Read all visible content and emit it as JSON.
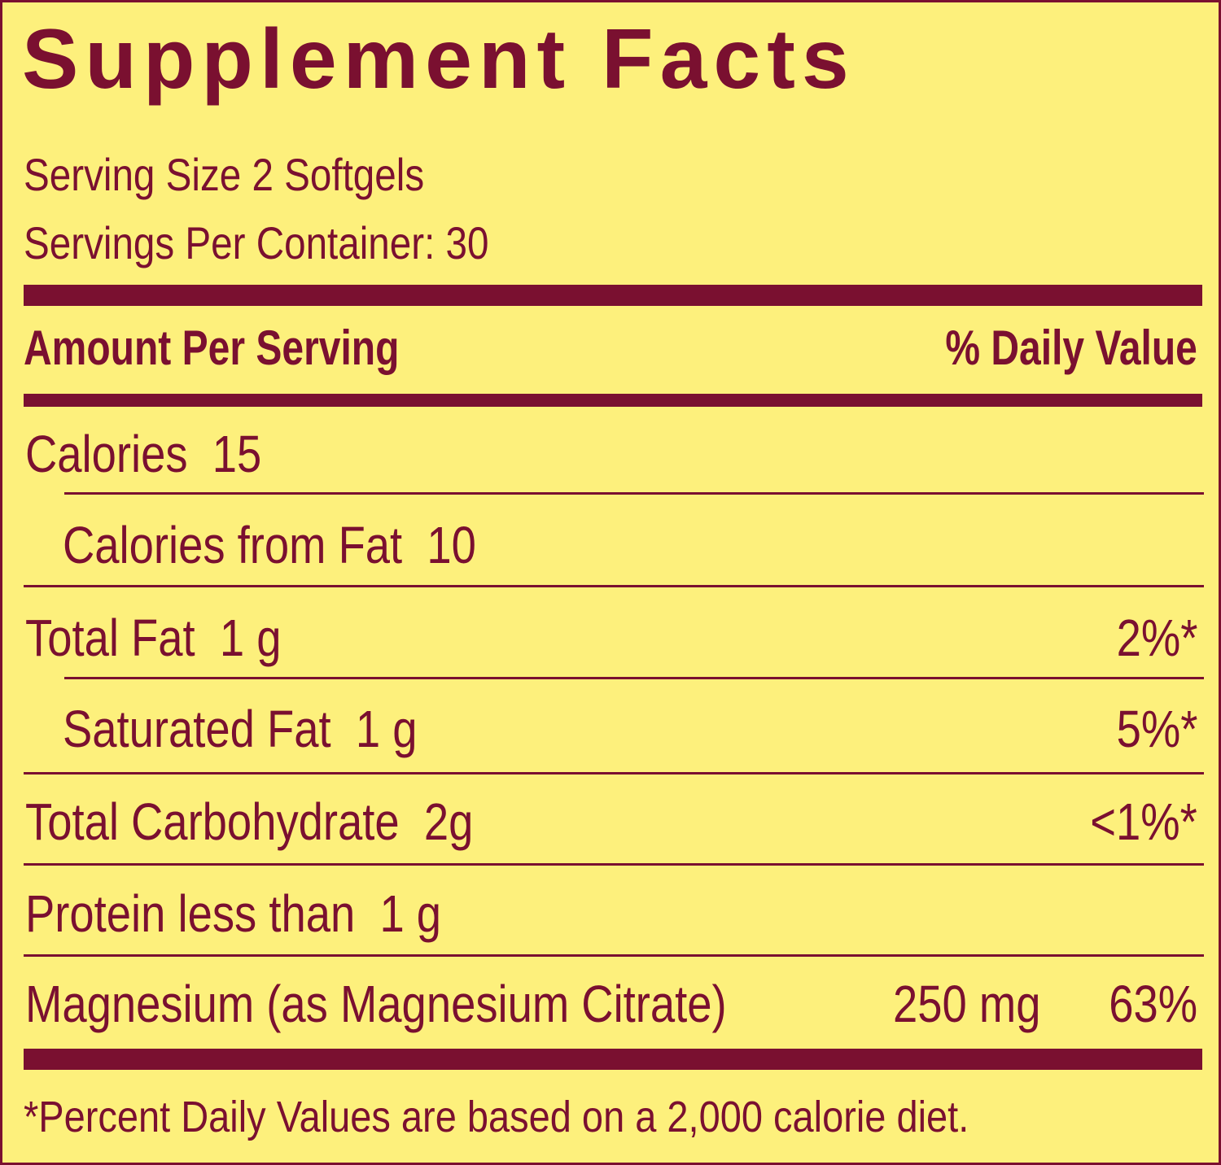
{
  "title": "Supplement Facts",
  "serving_size": "Serving Size 2 Softgels",
  "servings_per_container": "Servings Per Container: 30",
  "header": {
    "amount": "Amount Per Serving",
    "daily_value": "% Daily Value"
  },
  "rows": {
    "calories": {
      "label": "Calories  15"
    },
    "calories_fat": {
      "label": "Calories from Fat  10"
    },
    "total_fat": {
      "label": "Total Fat  1 g",
      "dv": "2%*"
    },
    "saturated_fat": {
      "label": "Saturated Fat  1 g",
      "dv": "5%*"
    },
    "carbohydrate": {
      "label": "Total Carbohydrate  2g",
      "dv": "<1%*"
    },
    "protein": {
      "label": "Protein less than  1 g"
    },
    "magnesium": {
      "label": "Magnesium (as Magnesium Citrate)",
      "amount": "250 mg",
      "dv": "63%"
    }
  },
  "footnote": "*Percent Daily Values are based on a 2,000 calorie diet.",
  "colors": {
    "text": "#7a1030",
    "background": "#fdf07c"
  }
}
